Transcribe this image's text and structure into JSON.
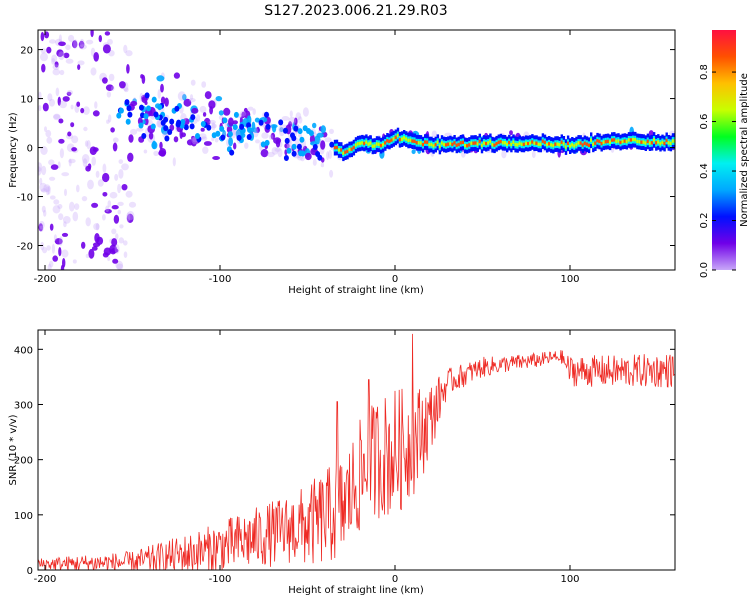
{
  "title": "S127.2023.006.21.29.R03",
  "chart_data": [
    {
      "type": "heatmap",
      "name": "spectrogram",
      "xlabel": "Height of straight line (km)",
      "ylabel": "Frequency (Hz)",
      "xlim": [
        -204,
        160
      ],
      "ylim": [
        -25,
        24
      ],
      "xticks": [
        -200,
        -100,
        0,
        100
      ],
      "yticks": [
        -20,
        -10,
        0,
        10,
        20
      ],
      "colorbar": {
        "label": "Normalized spectral amplitude",
        "range": [
          0,
          0.97
        ],
        "ticks": [
          "0.0",
          "0.2",
          "0.4",
          "0.6",
          "0.8"
        ],
        "tick_values": [
          0.0,
          0.2,
          0.4,
          0.6,
          0.8
        ],
        "colors": [
          "#c8a8f8",
          "#7000e8",
          "#0010ff",
          "#00a8ff",
          "#00f0f0",
          "#00ff20",
          "#c8ff00",
          "#ffc000",
          "#ff5000",
          "#ff1040"
        ]
      },
      "ridge": [
        [
          -204,
          2
        ],
        [
          -150,
          7
        ],
        [
          -100,
          4
        ],
        [
          -60,
          2
        ],
        [
          -35,
          0
        ],
        [
          -30,
          -1
        ],
        [
          -20,
          1
        ],
        [
          -10,
          0.5
        ],
        [
          0,
          2
        ],
        [
          20,
          0.5
        ],
        [
          60,
          1
        ],
        [
          80,
          1
        ],
        [
          100,
          0.5
        ],
        [
          130,
          1.5
        ],
        [
          160,
          1
        ]
      ]
    },
    {
      "type": "line",
      "name": "snr",
      "xlabel": "Height of straight line (km)",
      "ylabel": "SNR (10 * v/v)",
      "xlim": [
        -204,
        160
      ],
      "ylim": [
        0,
        435
      ],
      "xticks": [
        -200,
        -100,
        0,
        100
      ],
      "yticks": [
        0,
        100,
        200,
        300,
        400
      ],
      "color": "#ee2a24",
      "envelope": [
        [
          -204,
          15
        ],
        [
          -150,
          22
        ],
        [
          -110,
          50
        ],
        [
          -80,
          80
        ],
        [
          -50,
          110
        ],
        [
          -30,
          150
        ],
        [
          -20,
          210
        ],
        [
          -10,
          250
        ],
        [
          0,
          260
        ],
        [
          10,
          270
        ],
        [
          20,
          300
        ],
        [
          30,
          350
        ],
        [
          50,
          375
        ],
        [
          80,
          385
        ],
        [
          95,
          392
        ],
        [
          100,
          372
        ],
        [
          130,
          372
        ],
        [
          160,
          375
        ]
      ],
      "spread": [
        [
          -204,
          14
        ],
        [
          -150,
          25
        ],
        [
          -100,
          60
        ],
        [
          -60,
          80
        ],
        [
          -40,
          110
        ],
        [
          -20,
          130
        ],
        [
          0,
          150
        ],
        [
          15,
          110
        ],
        [
          30,
          30
        ],
        [
          60,
          20
        ],
        [
          95,
          15
        ],
        [
          100,
          35
        ],
        [
          160,
          40
        ]
      ],
      "spikes": [
        [
          10,
          428
        ],
        [
          -15,
          345
        ],
        [
          -33,
          305
        ]
      ]
    }
  ]
}
